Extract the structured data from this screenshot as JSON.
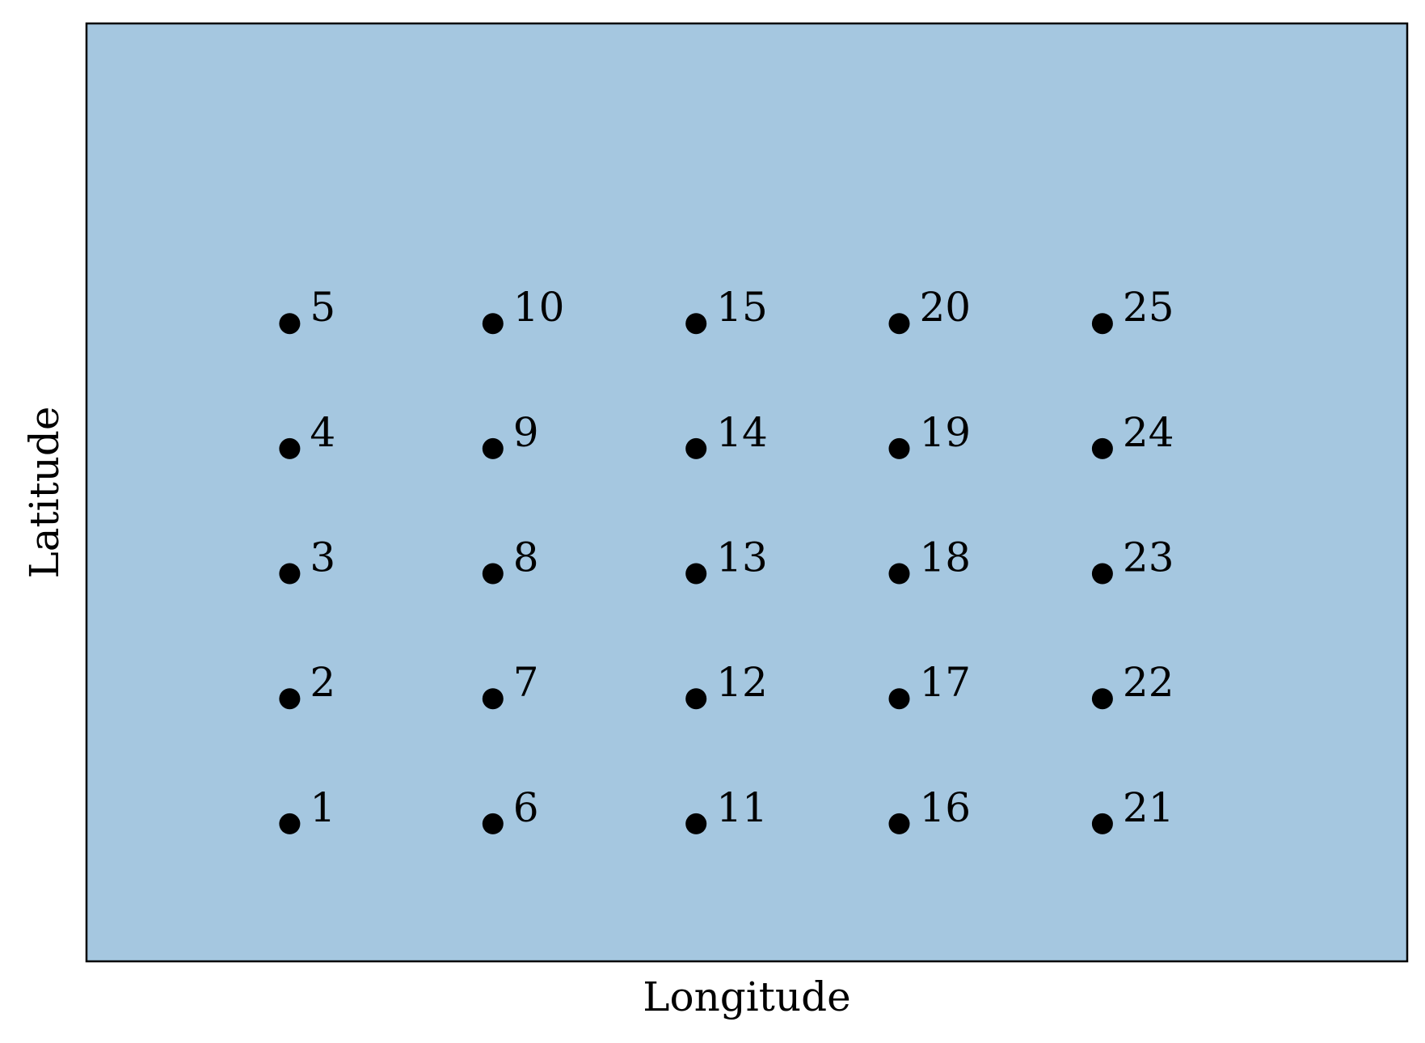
{
  "chart_data": {
    "type": "scatter",
    "title": "",
    "xlabel": "Longitude",
    "ylabel": "Latitude",
    "xlim": [
      0,
      6.5
    ],
    "ylim": [
      -0.1,
      7.4
    ],
    "grid": false,
    "colors": {
      "background": "#a5c7e0",
      "marker": "#000000",
      "frame": "#000000"
    },
    "points": [
      {
        "label": "1",
        "x": 1,
        "y": 1
      },
      {
        "label": "2",
        "x": 1,
        "y": 2
      },
      {
        "label": "3",
        "x": 1,
        "y": 3
      },
      {
        "label": "4",
        "x": 1,
        "y": 4
      },
      {
        "label": "5",
        "x": 1,
        "y": 5
      },
      {
        "label": "6",
        "x": 2,
        "y": 1
      },
      {
        "label": "7",
        "x": 2,
        "y": 2
      },
      {
        "label": "8",
        "x": 2,
        "y": 3
      },
      {
        "label": "9",
        "x": 2,
        "y": 4
      },
      {
        "label": "10",
        "x": 2,
        "y": 5
      },
      {
        "label": "11",
        "x": 3,
        "y": 1
      },
      {
        "label": "12",
        "x": 3,
        "y": 2
      },
      {
        "label": "13",
        "x": 3,
        "y": 3
      },
      {
        "label": "14",
        "x": 3,
        "y": 4
      },
      {
        "label": "15",
        "x": 3,
        "y": 5
      },
      {
        "label": "16",
        "x": 4,
        "y": 1
      },
      {
        "label": "17",
        "x": 4,
        "y": 2
      },
      {
        "label": "18",
        "x": 4,
        "y": 3
      },
      {
        "label": "19",
        "x": 4,
        "y": 4
      },
      {
        "label": "20",
        "x": 4,
        "y": 5
      },
      {
        "label": "21",
        "x": 5,
        "y": 1
      },
      {
        "label": "22",
        "x": 5,
        "y": 2
      },
      {
        "label": "23",
        "x": 5,
        "y": 3
      },
      {
        "label": "24",
        "x": 5,
        "y": 4
      },
      {
        "label": "25",
        "x": 5,
        "y": 5
      }
    ]
  }
}
